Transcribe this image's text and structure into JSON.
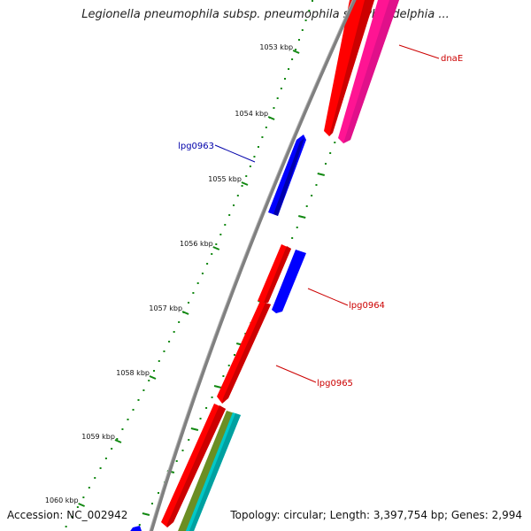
{
  "title": "Legionella pneumophila subsp. pneumophila str. Philadelphia ...",
  "footer": {
    "accession": "Accession: NC_002942",
    "summary": "Topology: circular; Length: 3,397,754 bp; Genes: 2,994"
  },
  "ruler": {
    "ticks": [
      {
        "label": "1053 kbp",
        "kbp": 1053
      },
      {
        "label": "1054 kbp",
        "kbp": 1054
      },
      {
        "label": "1055 kbp",
        "kbp": 1055
      },
      {
        "label": "1056 kbp",
        "kbp": 1056
      },
      {
        "label": "1057 kbp",
        "kbp": 1057
      },
      {
        "label": "1058 kbp",
        "kbp": 1058
      },
      {
        "label": "1059 kbp",
        "kbp": 1059
      },
      {
        "label": "1060 kbp",
        "kbp": 1060
      }
    ]
  },
  "gene_labels": [
    {
      "name": "dnaE",
      "color": "#cc0000"
    },
    {
      "name": "lpg0963",
      "color": "#0000aa"
    },
    {
      "name": "lpg0964",
      "color": "#cc0000"
    },
    {
      "name": "lpg0965",
      "color": "#cc0000"
    }
  ],
  "colors": {
    "forward_cds": "#ff0000",
    "reverse_cds": "#0000ff",
    "pink_feature": "#ff1493",
    "olive_feature": "#6b8e23",
    "cyan_feature": "#00c8c8",
    "backbone": "#808080",
    "gc_marks": "#118811"
  }
}
